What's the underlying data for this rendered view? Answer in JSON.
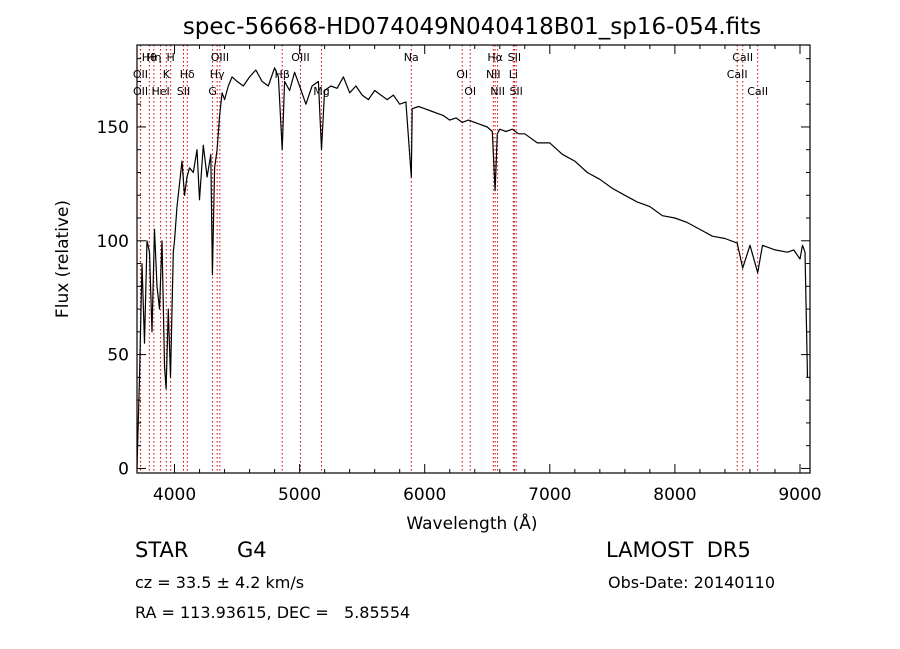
{
  "chart_data": {
    "type": "line",
    "title": "spec-56668-HD074049N040418B01_sp16-054.fits",
    "xlabel": "Wavelength (Å)",
    "ylabel": "Flux (relative)",
    "xlim": [
      3700,
      9080
    ],
    "ylim": [
      -2,
      186
    ],
    "xticks": [
      4000,
      5000,
      6000,
      7000,
      8000,
      9000
    ],
    "yticks": [
      0,
      50,
      100,
      150
    ],
    "grid": false,
    "series": [
      {
        "color": "#000000",
        "x": [
          3700,
          3720,
          3740,
          3760,
          3780,
          3800,
          3820,
          3840,
          3860,
          3880,
          3900,
          3920,
          3933,
          3950,
          3968,
          3990,
          4000,
          4020,
          4040,
          4060,
          4080,
          4100,
          4120,
          4150,
          4180,
          4200,
          4230,
          4260,
          4290,
          4303,
          4320,
          4340,
          4360,
          4380,
          4400,
          4430,
          4460,
          4500,
          4550,
          4600,
          4650,
          4700,
          4750,
          4800,
          4830,
          4861,
          4880,
          4920,
          4960,
          5000,
          5050,
          5100,
          5150,
          5175,
          5200,
          5250,
          5300,
          5350,
          5400,
          5450,
          5500,
          5550,
          5600,
          5650,
          5700,
          5750,
          5800,
          5850,
          5893,
          5900,
          5950,
          6000,
          6050,
          6100,
          6150,
          6200,
          6250,
          6300,
          6350,
          6400,
          6450,
          6500,
          6540,
          6563,
          6580,
          6600,
          6650,
          6700,
          6750,
          6800,
          6900,
          7000,
          7100,
          7200,
          7300,
          7400,
          7500,
          7600,
          7700,
          7800,
          7900,
          8000,
          8100,
          8200,
          8300,
          8400,
          8498,
          8542,
          8600,
          8662,
          8700,
          8800,
          8900,
          8950,
          9000,
          9020,
          9040,
          9060
        ],
        "y": [
          0,
          40,
          90,
          55,
          100,
          95,
          60,
          105,
          80,
          70,
          100,
          45,
          35,
          70,
          40,
          95,
          100,
          115,
          125,
          135,
          120,
          128,
          132,
          130,
          140,
          118,
          142,
          128,
          138,
          85,
          132,
          140,
          155,
          165,
          162,
          168,
          172,
          170,
          168,
          172,
          175,
          170,
          168,
          176,
          172,
          140,
          170,
          166,
          174,
          168,
          160,
          168,
          170,
          140,
          166,
          168,
          167,
          172,
          165,
          168,
          164,
          162,
          166,
          164,
          162,
          164,
          160,
          161,
          128,
          158,
          159,
          158,
          157,
          156,
          155,
          153,
          154,
          152,
          153,
          152,
          151,
          150,
          148,
          122,
          147,
          149,
          148,
          149,
          147,
          147,
          143,
          143,
          138,
          135,
          130,
          127,
          123,
          120,
          117,
          115,
          111,
          110,
          108,
          105,
          102,
          101,
          99,
          88,
          98,
          86,
          98,
          96,
          95,
          96,
          92,
          98,
          95,
          40
        ]
      }
    ],
    "line_markers": [
      {
        "name": "Hθ",
        "wavelength": 3798
      },
      {
        "name": "OII",
        "wavelength": 3727
      },
      {
        "name": "OII",
        "wavelength": 3729
      },
      {
        "name": "Hη",
        "wavelength": 3835
      },
      {
        "name": "K",
        "wavelength": 3934
      },
      {
        "name": "HeI",
        "wavelength": 3889
      },
      {
        "name": "H",
        "wavelength": 3969
      },
      {
        "name": "Hδ",
        "wavelength": 4102
      },
      {
        "name": "SII",
        "wavelength": 4072
      },
      {
        "name": "OIII",
        "wavelength": 4363
      },
      {
        "name": "Hγ",
        "wavelength": 4341
      },
      {
        "name": "G",
        "wavelength": 4304
      },
      {
        "name": "OIII",
        "wavelength": 5007
      },
      {
        "name": "Hβ",
        "wavelength": 4861
      },
      {
        "name": "Mg",
        "wavelength": 5175
      },
      {
        "name": "Na",
        "wavelength": 5893
      },
      {
        "name": "OI",
        "wavelength": 6300
      },
      {
        "name": "OI",
        "wavelength": 6364
      },
      {
        "name": "Hα",
        "wavelength": 6563
      },
      {
        "name": "NII",
        "wavelength": 6548
      },
      {
        "name": "NII",
        "wavelength": 6583
      },
      {
        "name": "SII",
        "wavelength": 6717
      },
      {
        "name": "Li",
        "wavelength": 6708
      },
      {
        "name": "SII",
        "wavelength": 6731
      },
      {
        "name": "CaII",
        "wavelength": 8542
      },
      {
        "name": "CaII",
        "wavelength": 8498
      },
      {
        "name": "CaII",
        "wavelength": 8662
      }
    ],
    "marker_color": "#cc0000"
  },
  "info": {
    "object_class": "STAR",
    "subclass": "G4",
    "survey": "LAMOST  DR5",
    "cz": "cz = 33.5 ± 4.2 km/s",
    "obs_date": "Obs-Date: 20140110",
    "radec": "RA = 113.93615, DEC =   5.85554"
  }
}
